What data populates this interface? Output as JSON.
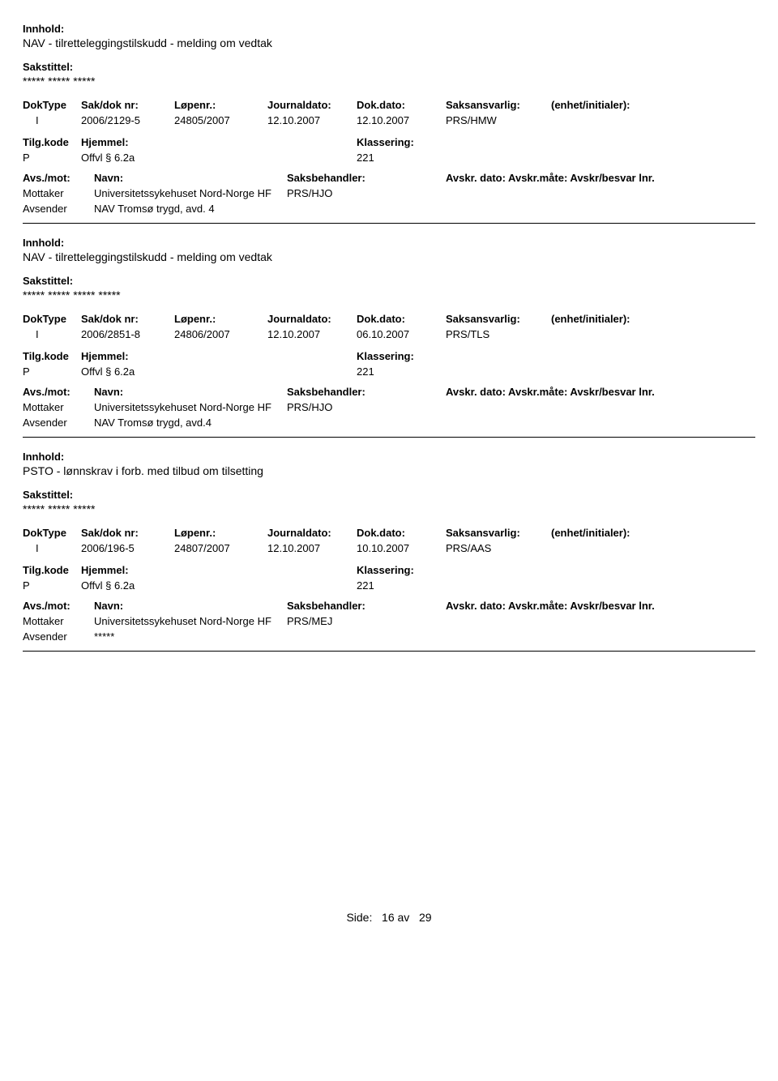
{
  "labels": {
    "innhold": "Innhold:",
    "sakstittel": "Sakstittel:",
    "doktype": "DokType",
    "sakdok": "Sak/dok nr:",
    "lopenr": "Løpenr.:",
    "journaldato": "Journaldato:",
    "dokdato": "Dok.dato:",
    "saksansvarlig": "Saksansvarlig:",
    "enhet": "(enhet/initialer):",
    "tilgkode": "Tilg.kode",
    "hjemmel": "Hjemmel:",
    "klassering": "Klassering:",
    "avsmot": "Avs./mot:",
    "navn": "Navn:",
    "saksbehandler": "Saksbehandler:",
    "avskr": "Avskr. dato: Avskr.måte: Avskr/besvar lnr.",
    "mottaker": "Mottaker",
    "avsender": "Avsender"
  },
  "records": [
    {
      "innhold": "NAV - tilretteleggingstilskudd - melding om vedtak",
      "sakstittel": "***** ***** *****",
      "doktype": "I",
      "sakdok": "2006/2129-5",
      "lopenr": "24805/2007",
      "journaldato": "12.10.2007",
      "dokdato": "12.10.2007",
      "saksansvarlig": "PRS/HMW",
      "enhet": "",
      "tilgkode": "P",
      "hjemmel": "Offvl § 6.2a",
      "klassering": "221",
      "mottaker": "Universitetssykehuset Nord-Norge HF",
      "saksbehandler": "PRS/HJO",
      "avsender": "NAV Tromsø trygd, avd. 4"
    },
    {
      "innhold": "NAV - tilretteleggingstilskudd - melding om vedtak",
      "sakstittel": "***** ***** ***** *****",
      "doktype": "I",
      "sakdok": "2006/2851-8",
      "lopenr": "24806/2007",
      "journaldato": "12.10.2007",
      "dokdato": "06.10.2007",
      "saksansvarlig": "PRS/TLS",
      "enhet": "",
      "tilgkode": "P",
      "hjemmel": "Offvl § 6.2a",
      "klassering": "221",
      "mottaker": "Universitetssykehuset Nord-Norge HF",
      "saksbehandler": "PRS/HJO",
      "avsender": "NAV Tromsø trygd, avd.4"
    },
    {
      "innhold": "PSTO - lønnskrav i forb. med tilbud om tilsetting",
      "sakstittel": "***** ***** *****",
      "doktype": "I",
      "sakdok": "2006/196-5",
      "lopenr": "24807/2007",
      "journaldato": "12.10.2007",
      "dokdato": "10.10.2007",
      "saksansvarlig": "PRS/AAS",
      "enhet": "",
      "tilgkode": "P",
      "hjemmel": "Offvl § 6.2a",
      "klassering": "221",
      "mottaker": "Universitetssykehuset Nord-Norge HF",
      "saksbehandler": "PRS/MEJ",
      "avsender": "*****"
    }
  ],
  "footer": {
    "prefix": "Side:",
    "page": "16",
    "sep": "av",
    "total": "29"
  }
}
